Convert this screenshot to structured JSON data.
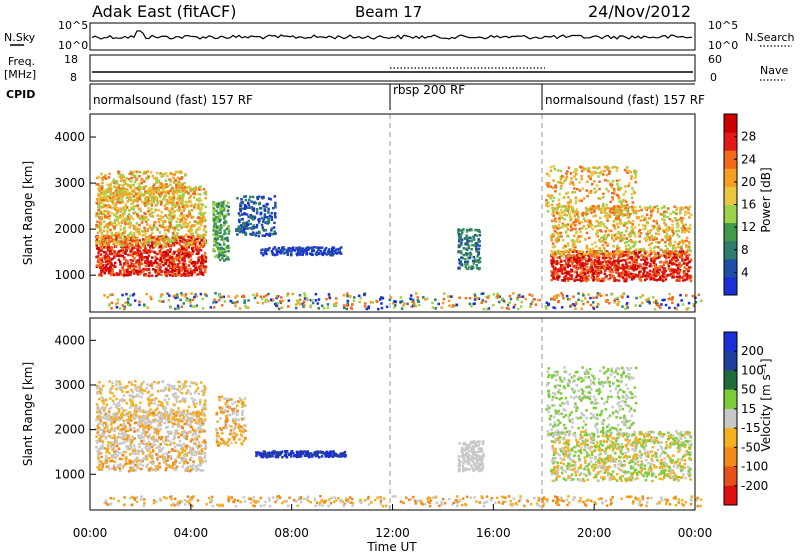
{
  "header": {
    "title": "Adak East (fitACF)",
    "beam": "Beam 17",
    "date": "24/Nov/2012"
  },
  "nsky_panel": {
    "left_label": "N.Sky",
    "left_ticks": [
      "10^5",
      "10^0"
    ],
    "right_label": "N.Search",
    "right_ticks": [
      "10^5",
      "10^0"
    ]
  },
  "freq_panel": {
    "left_label_1": "Freq.",
    "left_label_2": "[MHz]",
    "left_ticks": [
      "18",
      "8"
    ],
    "right_label": "Nave",
    "right_ticks": [
      "60",
      "0"
    ]
  },
  "cpid_panel": {
    "label": "CPID",
    "segments": [
      {
        "label": "normalsound (fast) 157 RF",
        "start": "00:00",
        "end": "12:00"
      },
      {
        "label": "rbsp 200 RF",
        "start": "12:00",
        "end": "18:00"
      },
      {
        "label": "normalsound (fast) 157 RF",
        "start": "18:00",
        "end": "24:00"
      }
    ]
  },
  "chart_data": [
    {
      "type": "heatmap",
      "name": "power",
      "ylabel": "Slant Range [km]",
      "yticks": [
        "1000",
        "2000",
        "3000",
        "4000"
      ],
      "ylim": [
        200,
        4500
      ],
      "colorbar_label": "Power [dB]",
      "colorbar_ticks": [
        "4",
        "8",
        "12",
        "16",
        "20",
        "24",
        "28"
      ],
      "colorbar_colors": [
        "#1a2fd8",
        "#1f4ea6",
        "#2e7d6a",
        "#3f9a4a",
        "#9bd24a",
        "#e8c640",
        "#f5a024",
        "#f26a1a",
        "#e21a16",
        "#cc0000"
      ]
    },
    {
      "type": "heatmap",
      "name": "velocity",
      "ylabel": "Slant Range [km]",
      "yticks": [
        "1000",
        "2000",
        "3000",
        "4000"
      ],
      "ylim": [
        200,
        4500
      ],
      "colorbar_label": "Velocity [m s⁻¹]",
      "colorbar_ticks": [
        "200",
        "100",
        "50",
        "15",
        "-15",
        "-50",
        "-100",
        "-200"
      ],
      "colorbar_colors": [
        "#1a2fd8",
        "#22409b",
        "#1f6b3b",
        "#7ccc3a",
        "#c8c8c8",
        "#f5b020",
        "#f08a1a",
        "#e8501a",
        "#e01010"
      ]
    }
  ],
  "xaxis": {
    "label": "Time UT",
    "ticks": [
      "00:00",
      "04:00",
      "08:00",
      "12:00",
      "16:00",
      "20:00",
      "00:00"
    ]
  },
  "colors": {
    "low_scatter": "#e05a10",
    "mid_scatter": "#e8a040",
    "ground": "#c8c8c8"
  }
}
